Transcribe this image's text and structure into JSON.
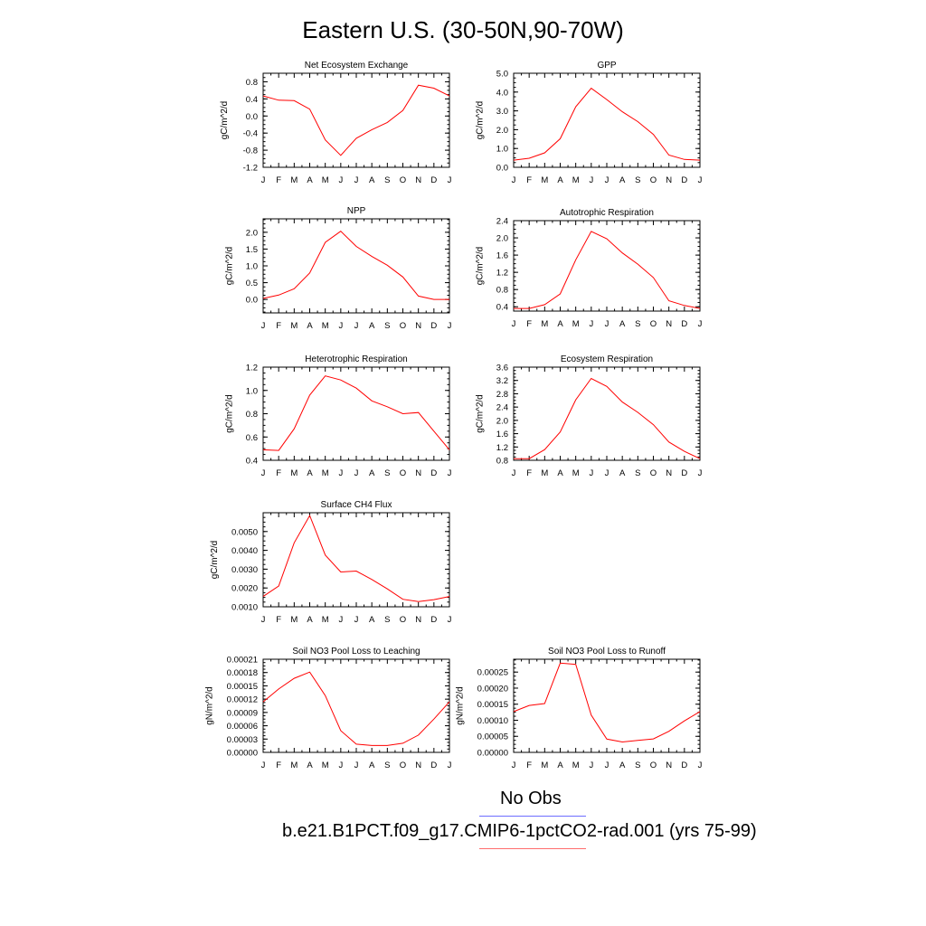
{
  "title": "Eastern U.S. (30-50N,90-70W)",
  "months": [
    "J",
    "F",
    "M",
    "A",
    "M",
    "J",
    "J",
    "A",
    "S",
    "O",
    "N",
    "D",
    "J"
  ],
  "line_color": "#ff0000",
  "legend": {
    "obs_label": "No Obs",
    "obs_color": "#6d6dff",
    "case_label": "b.e21.B1PCT.f09_g17.CMIP6-1pctCO2-rad.001 (yrs 75-99)",
    "case_color": "#ff6d6d"
  },
  "chart_data": [
    {
      "type": "line",
      "title": "Net Ecosystem Exchange",
      "ylabel": "gC/m^2/d",
      "ylim": [
        -1.2,
        1.0
      ],
      "yticks": [
        -1.2,
        -0.8,
        -0.4,
        0.0,
        0.4,
        0.8
      ],
      "ytick_labels": [
        "-1.2",
        "-0.8",
        "-0.4",
        "0.0",
        "0.4",
        "0.8"
      ],
      "values": [
        0.47,
        0.37,
        0.36,
        0.16,
        -0.56,
        -0.92,
        -0.52,
        -0.32,
        -0.15,
        0.13,
        0.72,
        0.65,
        0.47
      ]
    },
    {
      "type": "line",
      "title": "GPP",
      "ylabel": "gC/m^2/d",
      "ylim": [
        0,
        5
      ],
      "yticks": [
        0,
        1,
        2,
        3,
        4,
        5
      ],
      "ytick_labels": [
        "0.0",
        "1.0",
        "2.0",
        "3.0",
        "4.0",
        "5.0"
      ],
      "values": [
        0.38,
        0.48,
        0.77,
        1.52,
        3.22,
        4.2,
        3.6,
        2.95,
        2.43,
        1.75,
        0.65,
        0.42,
        0.38
      ]
    },
    {
      "type": "line",
      "title": "NPP",
      "ylabel": "gC/m^2/d",
      "ylim": [
        -0.4,
        2.4
      ],
      "yticks": [
        0,
        0.5,
        1.0,
        1.5,
        2.0
      ],
      "ytick_labels": [
        "0.0",
        "0.5",
        "1.0",
        "1.5",
        "2.0"
      ],
      "values": [
        0.03,
        0.13,
        0.32,
        0.79,
        1.7,
        2.03,
        1.58,
        1.28,
        1.02,
        0.67,
        0.1,
        0.0,
        0.0
      ]
    },
    {
      "type": "line",
      "title": "Autotrophic Respiration",
      "ylabel": "gC/m^2/d",
      "ylim": [
        0.3,
        2.4
      ],
      "yticks": [
        0.4,
        0.8,
        1.2,
        1.6,
        2.0,
        2.4
      ],
      "ytick_labels": [
        "0.4",
        "0.8",
        "1.2",
        "1.6",
        "2.0",
        "2.4"
      ],
      "values": [
        0.36,
        0.36,
        0.45,
        0.7,
        1.49,
        2.15,
        1.98,
        1.65,
        1.39,
        1.08,
        0.54,
        0.43,
        0.36
      ]
    },
    {
      "type": "line",
      "title": "Heterotrophic Respiration",
      "ylabel": "gC/m^2/d",
      "ylim": [
        0.4,
        1.2
      ],
      "yticks": [
        0.4,
        0.6,
        0.8,
        1.0,
        1.2
      ],
      "ytick_labels": [
        "0.4",
        "0.6",
        "0.8",
        "1.0",
        "1.2"
      ],
      "values": [
        0.49,
        0.485,
        0.67,
        0.96,
        1.125,
        1.09,
        1.02,
        0.91,
        0.86,
        0.8,
        0.81,
        0.65,
        0.49
      ]
    },
    {
      "type": "line",
      "title": "Ecosystem Respiration",
      "ylabel": "gC/m^2/d",
      "ylim": [
        0.8,
        3.6
      ],
      "yticks": [
        0.8,
        1.2,
        1.6,
        2.0,
        2.4,
        2.8,
        3.2,
        3.6
      ],
      "ytick_labels": [
        "0.8",
        "1.2",
        "1.6",
        "2.0",
        "2.4",
        "2.8",
        "3.2",
        "3.6"
      ],
      "values": [
        0.85,
        0.85,
        1.12,
        1.65,
        2.62,
        3.26,
        3.02,
        2.55,
        2.24,
        1.87,
        1.35,
        1.07,
        0.85
      ]
    },
    {
      "type": "line",
      "title": "Surface CH4 Flux",
      "ylabel": "gC/m^2/d",
      "ylim": [
        0.001,
        0.006
      ],
      "yticks": [
        0.001,
        0.002,
        0.003,
        0.004,
        0.005
      ],
      "ytick_labels": [
        "0.0010",
        "0.0020",
        "0.0030",
        "0.0040",
        "0.0050"
      ],
      "values": [
        0.00155,
        0.0021,
        0.0044,
        0.00585,
        0.00375,
        0.00285,
        0.0029,
        0.00245,
        0.00195,
        0.0014,
        0.00128,
        0.00138,
        0.00155
      ]
    },
    {
      "type": "line",
      "title": "Soil NO3 Pool Loss to Leaching",
      "ylabel": "gN/m^2/d",
      "ylim": [
        0,
        0.00021
      ],
      "yticks": [
        0,
        3e-05,
        6e-05,
        9e-05,
        0.00012,
        0.00015,
        0.00018,
        0.00021
      ],
      "ytick_labels": [
        "0.00000",
        "0.00003",
        "0.00006",
        "0.00009",
        "0.00012",
        "0.00015",
        "0.00018",
        "0.00021"
      ],
      "values": [
        0.000114,
        0.000143,
        0.000167,
        0.000181,
        0.000128,
        4.9e-05,
        1.85e-05,
        1.55e-05,
        1.55e-05,
        2.05e-05,
        3.9e-05,
        7.5e-05,
        0.000114
      ]
    },
    {
      "type": "line",
      "title": "Soil NO3 Pool Loss to Runoff",
      "ylabel": "gN/m^2/d",
      "ylim": [
        0,
        0.00029
      ],
      "yticks": [
        0,
        5e-05,
        0.0001,
        0.00015,
        0.0002,
        0.00025
      ],
      "ytick_labels": [
        "0.00000",
        "0.00005",
        "0.00010",
        "0.00015",
        "0.00020",
        "0.00025"
      ],
      "values": [
        0.000127,
        0.000146,
        0.000152,
        0.000278,
        0.000274,
        0.000116,
        4.15e-05,
        3.25e-05,
        3.75e-05,
        4.2e-05,
        6.55e-05,
        9.8e-05,
        0.000127
      ]
    }
  ]
}
